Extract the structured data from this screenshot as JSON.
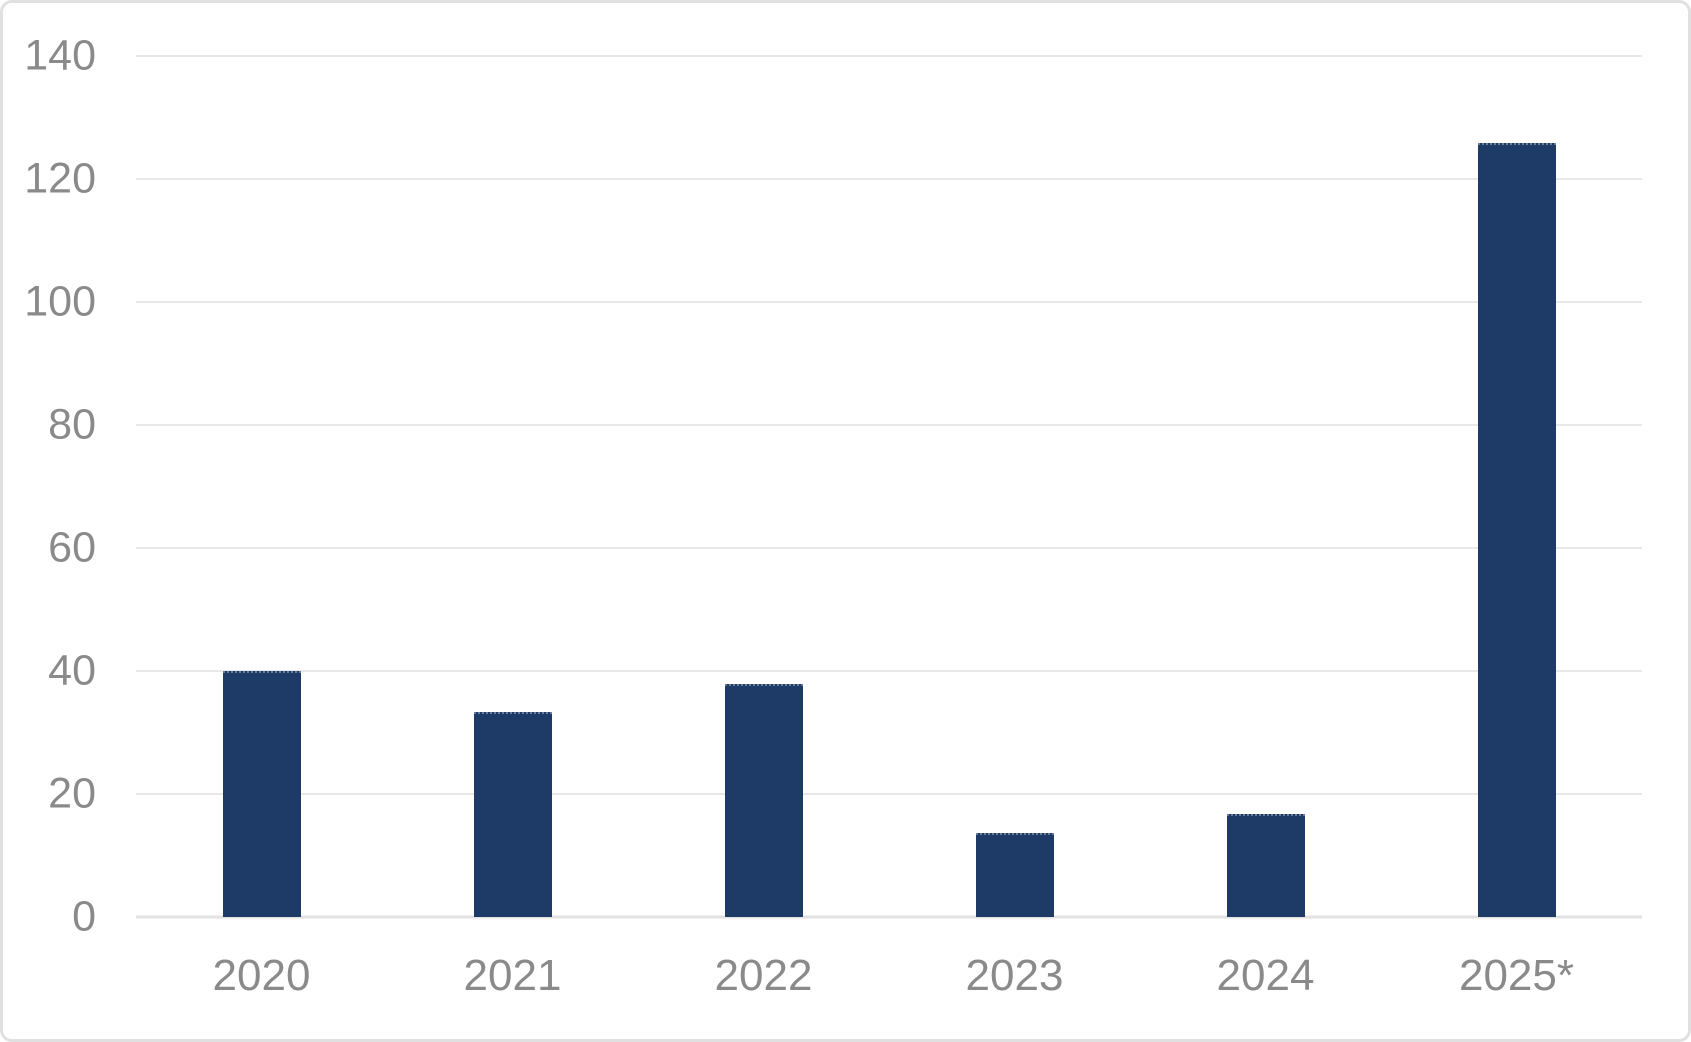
{
  "chart_data": {
    "type": "bar",
    "categories": [
      "2020",
      "2021",
      "2022",
      "2023",
      "2024",
      "2025*"
    ],
    "values": [
      40,
      33.3,
      37.9,
      13.7,
      16.8,
      125.8
    ],
    "title": "",
    "xlabel": "",
    "ylabel": "",
    "ylim": [
      0,
      140
    ],
    "yticks": [
      0,
      20,
      40,
      60,
      80,
      100,
      120,
      140
    ],
    "grid": true,
    "legend": "none",
    "bar_color": "#1e3a66",
    "gridline_color": "#e8e8e8",
    "axis_label_color": "#8a8a8a",
    "background_color": "#ffffff",
    "border_color": "#e0e0e0"
  }
}
